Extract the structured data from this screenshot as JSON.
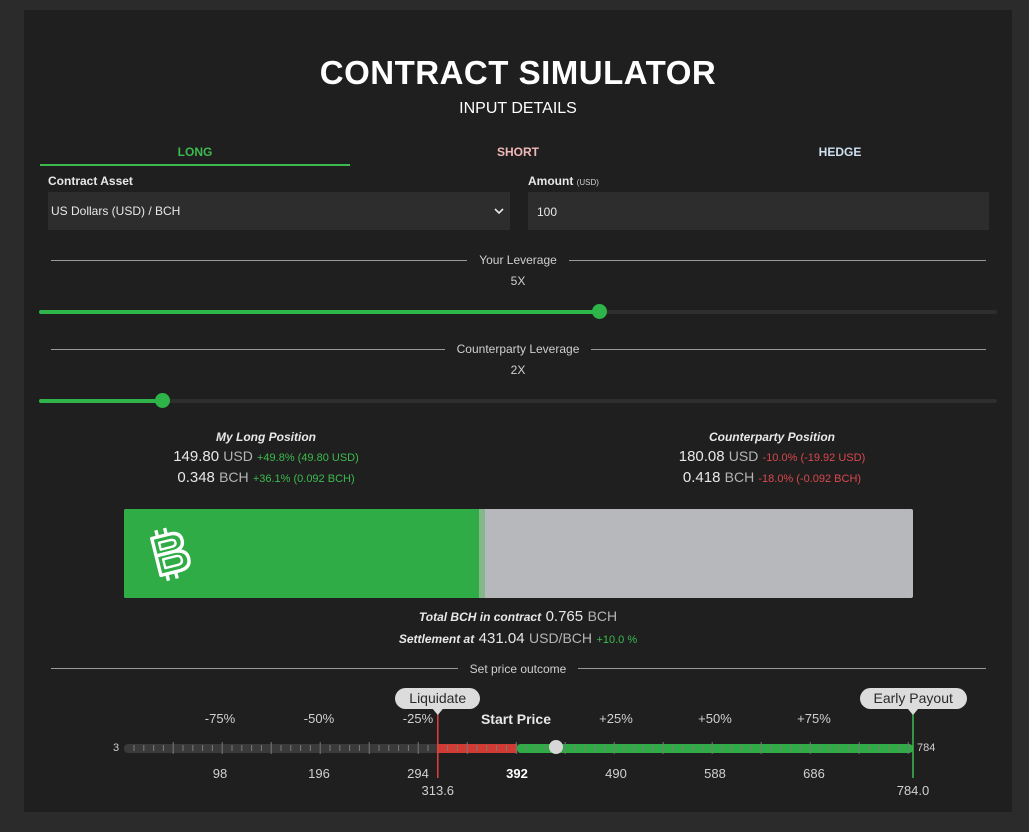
{
  "app": {
    "title": "CONTRACT SIMULATOR",
    "subtitle": "INPUT DETAILS"
  },
  "tabs": [
    {
      "label": "LONG",
      "active": true
    },
    {
      "label": "SHORT",
      "active": false
    },
    {
      "label": "HEDGE",
      "active": false
    }
  ],
  "form": {
    "asset_label": "Contract Asset",
    "asset_value": "US Dollars (USD) / BCH",
    "amount_label": "Amount",
    "amount_unit": "(USD)",
    "amount_value": "100"
  },
  "leverage": {
    "yours_label": "Your Leverage",
    "yours_value": "5X",
    "yours_fraction": 0.585,
    "counterparty_label": "Counterparty Leverage",
    "counterparty_value": "2X",
    "counterparty_fraction": 0.128
  },
  "positions": {
    "mine": {
      "title": "My Long Position",
      "usd_value": "149.80",
      "usd_unit": "USD",
      "usd_change": "+49.8% (49.80 USD)",
      "bch_value": "0.348",
      "bch_unit": "BCH",
      "bch_change": "+36.1% (0.092 BCH)"
    },
    "counterparty": {
      "title": "Counterparty Position",
      "usd_value": "180.08",
      "usd_unit": "USD",
      "usd_change": "-10.0% (-19.92 USD)",
      "bch_value": "0.418",
      "bch_unit": "BCH",
      "bch_change": "-18.0% (-0.092 BCH)"
    }
  },
  "split_bar": {
    "long_fraction": 0.45,
    "long_color": "#2fac45",
    "rest_color": "#b6b8bc",
    "icon": "bitcoin-cash-icon"
  },
  "totals": {
    "total_label": "Total BCH in contract",
    "total_value": "0.765",
    "total_unit": "BCH",
    "settle_label": "Settlement at",
    "settle_value": "431.04",
    "settle_unit": "USD/BCH",
    "settle_change": "+10.0 %"
  },
  "outcome": {
    "label": "Set price outcome",
    "liquidate_label": "Liquidate",
    "early_payout_label": "Early Payout",
    "start_price_label": "Start Price",
    "min": "3",
    "max": "784",
    "start_price": 392,
    "liquidate_price": 313.6,
    "payout_price": 784,
    "selected_price": 431.04,
    "range": [
      3,
      784
    ],
    "pct_labels": [
      {
        "text": "-75%",
        "at": 98
      },
      {
        "text": "-50%",
        "at": 196
      },
      {
        "text": "-25%",
        "at": 294
      },
      {
        "text": "+25%",
        "at": 490
      },
      {
        "text": "+50%",
        "at": 588
      },
      {
        "text": "+75%",
        "at": 686
      }
    ],
    "price_labels": [
      {
        "text": "98",
        "at": 98
      },
      {
        "text": "196",
        "at": 196
      },
      {
        "text": "294",
        "at": 294
      },
      {
        "text": "392",
        "at": 392
      },
      {
        "text": "490",
        "at": 490
      },
      {
        "text": "588",
        "at": 588
      },
      {
        "text": "686",
        "at": 686
      }
    ],
    "liquidate_value": "313.6",
    "payout_value": "784.0",
    "colors": {
      "loss": "#d23a34",
      "gain": "#2fac45",
      "track": "#3a3a3a",
      "marker_red": "#e0413b",
      "marker_green": "#3dba4e"
    }
  }
}
